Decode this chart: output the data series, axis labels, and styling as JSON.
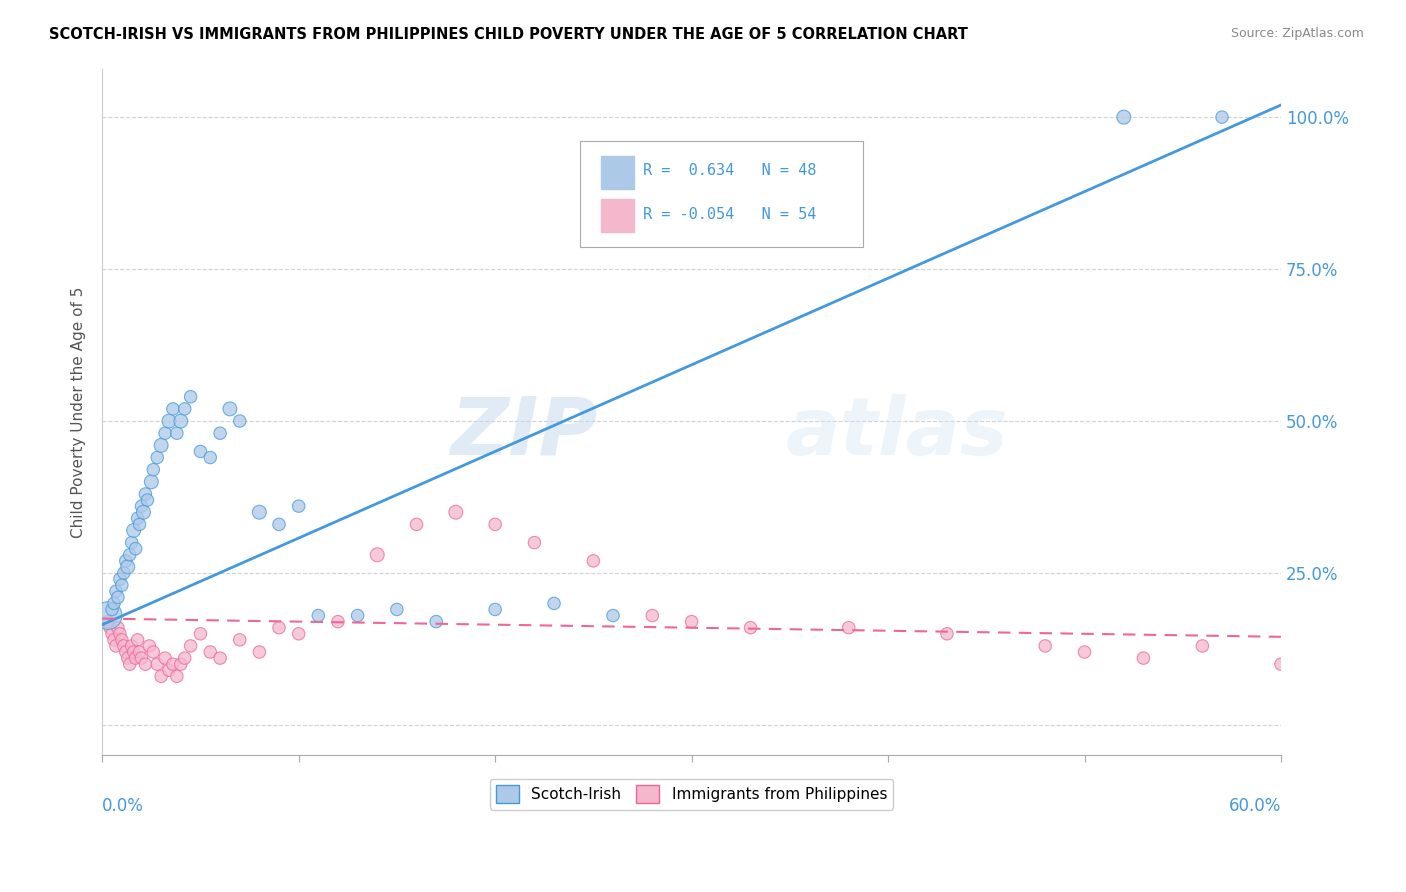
{
  "title": "SCOTCH-IRISH VS IMMIGRANTS FROM PHILIPPINES CHILD POVERTY UNDER THE AGE OF 5 CORRELATION CHART",
  "source": "Source: ZipAtlas.com",
  "ylabel": "Child Poverty Under the Age of 5",
  "legend_label1": "Scotch-Irish",
  "legend_label2": "Immigrants from Philippines",
  "r1": "0.634",
  "n1": "48",
  "r2": "-0.054",
  "n2": "54",
  "color_blue": "#adc9e8",
  "color_pink": "#f4b8cc",
  "line_blue": "#4499dd",
  "line_pink": "#ee6699",
  "watermark_zip": "ZIP",
  "watermark_atlas": "atlas",
  "xlim": [
    0.0,
    0.6
  ],
  "ylim": [
    -0.05,
    1.08
  ],
  "yticks": [
    0.0,
    0.25,
    0.5,
    0.75,
    1.0
  ],
  "yticklabels": [
    "",
    "25.0%",
    "50.0%",
    "75.0%",
    "100.0%"
  ],
  "xtick_label_left": "0.0%",
  "xtick_label_right": "60.0%",
  "si_x": [
    0.003,
    0.005,
    0.006,
    0.007,
    0.008,
    0.009,
    0.01,
    0.011,
    0.012,
    0.013,
    0.014,
    0.015,
    0.016,
    0.017,
    0.018,
    0.019,
    0.02,
    0.021,
    0.022,
    0.023,
    0.025,
    0.026,
    0.028,
    0.03,
    0.032,
    0.034,
    0.036,
    0.038,
    0.04,
    0.042,
    0.045,
    0.05,
    0.055,
    0.06,
    0.065,
    0.07,
    0.08,
    0.09,
    0.1,
    0.11,
    0.13,
    0.15,
    0.17,
    0.2,
    0.23,
    0.26,
    0.52,
    0.57
  ],
  "si_y": [
    0.18,
    0.19,
    0.2,
    0.22,
    0.21,
    0.24,
    0.23,
    0.25,
    0.27,
    0.26,
    0.28,
    0.3,
    0.32,
    0.29,
    0.34,
    0.33,
    0.36,
    0.35,
    0.38,
    0.37,
    0.4,
    0.42,
    0.44,
    0.46,
    0.48,
    0.5,
    0.52,
    0.48,
    0.5,
    0.52,
    0.54,
    0.45,
    0.44,
    0.48,
    0.52,
    0.5,
    0.35,
    0.33,
    0.36,
    0.18,
    0.18,
    0.19,
    0.17,
    0.19,
    0.2,
    0.18,
    1.0,
    1.0
  ],
  "si_sizes": [
    400,
    80,
    80,
    80,
    80,
    80,
    80,
    80,
    80,
    100,
    80,
    80,
    100,
    80,
    80,
    80,
    80,
    100,
    80,
    80,
    100,
    80,
    80,
    100,
    80,
    100,
    80,
    80,
    100,
    80,
    80,
    80,
    80,
    80,
    100,
    80,
    100,
    80,
    80,
    80,
    80,
    80,
    80,
    80,
    80,
    80,
    100,
    80
  ],
  "ph_x": [
    0.003,
    0.004,
    0.005,
    0.006,
    0.007,
    0.008,
    0.009,
    0.01,
    0.011,
    0.012,
    0.013,
    0.014,
    0.015,
    0.016,
    0.017,
    0.018,
    0.019,
    0.02,
    0.022,
    0.024,
    0.026,
    0.028,
    0.03,
    0.032,
    0.034,
    0.036,
    0.038,
    0.04,
    0.042,
    0.045,
    0.05,
    0.055,
    0.06,
    0.07,
    0.08,
    0.09,
    0.1,
    0.12,
    0.14,
    0.16,
    0.18,
    0.2,
    0.22,
    0.25,
    0.28,
    0.3,
    0.33,
    0.38,
    0.43,
    0.48,
    0.5,
    0.53,
    0.56,
    0.6
  ],
  "ph_y": [
    0.17,
    0.16,
    0.15,
    0.14,
    0.13,
    0.16,
    0.15,
    0.14,
    0.13,
    0.12,
    0.11,
    0.1,
    0.13,
    0.12,
    0.11,
    0.14,
    0.12,
    0.11,
    0.1,
    0.13,
    0.12,
    0.1,
    0.08,
    0.11,
    0.09,
    0.1,
    0.08,
    0.1,
    0.11,
    0.13,
    0.15,
    0.12,
    0.11,
    0.14,
    0.12,
    0.16,
    0.15,
    0.17,
    0.28,
    0.33,
    0.35,
    0.33,
    0.3,
    0.27,
    0.18,
    0.17,
    0.16,
    0.16,
    0.15,
    0.13,
    0.12,
    0.11,
    0.13,
    0.1
  ],
  "ph_sizes": [
    80,
    80,
    80,
    80,
    80,
    80,
    80,
    80,
    80,
    80,
    80,
    80,
    80,
    80,
    80,
    80,
    80,
    80,
    80,
    80,
    80,
    80,
    80,
    80,
    80,
    80,
    80,
    80,
    80,
    80,
    80,
    80,
    80,
    80,
    80,
    80,
    80,
    80,
    100,
    80,
    100,
    80,
    80,
    80,
    80,
    80,
    80,
    80,
    80,
    80,
    80,
    80,
    80,
    80
  ],
  "blue_line_x": [
    0.0,
    0.6
  ],
  "blue_line_y": [
    0.165,
    1.02
  ],
  "pink_line_x": [
    0.0,
    0.6
  ],
  "pink_line_y": [
    0.175,
    0.145
  ]
}
